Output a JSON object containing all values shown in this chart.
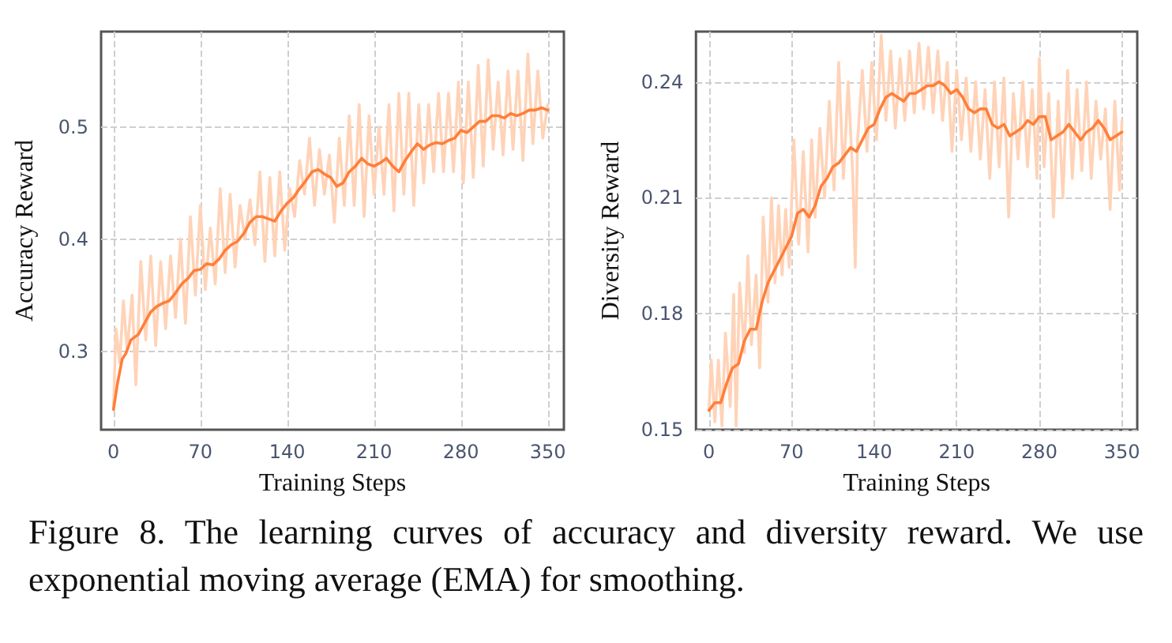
{
  "chart_data": [
    {
      "type": "line",
      "xlabel": "Training Steps",
      "ylabel": "Accuracy Reward",
      "xlim": [
        -10,
        363
      ],
      "xticks": [
        0,
        70,
        140,
        210,
        280,
        350
      ],
      "ylim": [
        0.23,
        0.585
      ],
      "yticks": [
        0.3,
        0.4,
        0.5
      ],
      "grid": true,
      "marker": "none",
      "line_style": "solid",
      "annotations": [
        "Figure 8.  The learning curves of accuracy and diversity reward. We use exponential moving average (EMA) for smoothing."
      ],
      "series": [
        {
          "color": "#ffd3b8",
          "x": [
            0,
            2,
            5,
            8,
            11,
            15,
            18,
            22,
            26,
            30,
            34,
            38,
            42,
            46,
            50,
            54,
            58,
            62,
            66,
            70,
            74,
            78,
            82,
            86,
            90,
            94,
            98,
            102,
            106,
            110,
            114,
            118,
            122,
            126,
            130,
            134,
            138,
            142,
            146,
            150,
            154,
            158,
            162,
            166,
            170,
            174,
            178,
            182,
            186,
            190,
            194,
            198,
            202,
            206,
            210,
            214,
            218,
            222,
            226,
            230,
            234,
            238,
            242,
            246,
            250,
            254,
            258,
            262,
            266,
            270,
            274,
            278,
            282,
            286,
            290,
            294,
            298,
            302,
            306,
            310,
            314,
            318,
            322,
            326,
            330,
            334,
            338,
            342,
            346,
            350
          ],
          "values": [
            0.25,
            0.32,
            0.29,
            0.345,
            0.3,
            0.35,
            0.27,
            0.38,
            0.31,
            0.385,
            0.305,
            0.38,
            0.32,
            0.385,
            0.33,
            0.4,
            0.325,
            0.42,
            0.35,
            0.43,
            0.355,
            0.41,
            0.36,
            0.445,
            0.37,
            0.44,
            0.375,
            0.43,
            0.4,
            0.435,
            0.395,
            0.46,
            0.38,
            0.455,
            0.385,
            0.46,
            0.39,
            0.445,
            0.42,
            0.47,
            0.44,
            0.49,
            0.43,
            0.48,
            0.44,
            0.475,
            0.415,
            0.49,
            0.43,
            0.51,
            0.43,
            0.52,
            0.42,
            0.51,
            0.44,
            0.5,
            0.44,
            0.52,
            0.425,
            0.53,
            0.44,
            0.53,
            0.43,
            0.52,
            0.45,
            0.52,
            0.46,
            0.53,
            0.46,
            0.53,
            0.46,
            0.54,
            0.45,
            0.54,
            0.455,
            0.555,
            0.465,
            0.56,
            0.48,
            0.54,
            0.475,
            0.55,
            0.48,
            0.55,
            0.47,
            0.565,
            0.485,
            0.55,
            0.49,
            0.52
          ]
        },
        {
          "color": "#ff7f3a",
          "x": [
            0,
            3,
            7,
            10,
            14,
            20,
            25,
            30,
            35,
            40,
            45,
            50,
            55,
            60,
            65,
            70,
            75,
            80,
            85,
            90,
            95,
            100,
            105,
            110,
            115,
            120,
            125,
            130,
            135,
            140,
            145,
            150,
            155,
            160,
            165,
            170,
            175,
            180,
            185,
            190,
            195,
            200,
            205,
            210,
            215,
            220,
            225,
            230,
            235,
            240,
            245,
            250,
            255,
            260,
            265,
            270,
            275,
            280,
            285,
            290,
            295,
            300,
            305,
            310,
            315,
            320,
            325,
            330,
            335,
            340,
            345,
            350
          ],
          "values": [
            0.248,
            0.27,
            0.293,
            0.298,
            0.31,
            0.315,
            0.325,
            0.335,
            0.34,
            0.343,
            0.345,
            0.352,
            0.36,
            0.365,
            0.372,
            0.373,
            0.378,
            0.377,
            0.382,
            0.39,
            0.395,
            0.398,
            0.405,
            0.415,
            0.42,
            0.42,
            0.418,
            0.416,
            0.425,
            0.432,
            0.437,
            0.445,
            0.452,
            0.46,
            0.462,
            0.458,
            0.455,
            0.447,
            0.45,
            0.46,
            0.465,
            0.472,
            0.467,
            0.465,
            0.468,
            0.472,
            0.465,
            0.46,
            0.47,
            0.478,
            0.485,
            0.48,
            0.484,
            0.486,
            0.485,
            0.488,
            0.49,
            0.497,
            0.495,
            0.5,
            0.505,
            0.505,
            0.51,
            0.51,
            0.508,
            0.512,
            0.51,
            0.512,
            0.515,
            0.515,
            0.517,
            0.515
          ]
        }
      ]
    },
    {
      "type": "line",
      "xlabel": "Training Steps",
      "ylabel": "Diversity Reward",
      "xlim": [
        -11,
        363
      ],
      "xticks": [
        0,
        70,
        140,
        210,
        280,
        350
      ],
      "ylim": [
        0.15,
        0.253
      ],
      "yticks": [
        0.15,
        0.18,
        0.21,
        0.24
      ],
      "grid": true,
      "marker": "none",
      "line_style": "solid",
      "series": [
        {
          "color": "#ffd3b8",
          "x": [
            0,
            2,
            5,
            8,
            11,
            14,
            18,
            21,
            23,
            26,
            30,
            33,
            36,
            40,
            43,
            46,
            50,
            53,
            56,
            59,
            62,
            65,
            68,
            72,
            76,
            80,
            84,
            87,
            90,
            94,
            98,
            102,
            106,
            110,
            114,
            118,
            122,
            124,
            126,
            130,
            134,
            138,
            142,
            146,
            150,
            154,
            158,
            162,
            166,
            170,
            174,
            178,
            182,
            186,
            190,
            194,
            198,
            202,
            206,
            210,
            214,
            218,
            222,
            226,
            230,
            234,
            238,
            242,
            246,
            250,
            254,
            258,
            262,
            266,
            270,
            274,
            278,
            280,
            284,
            288,
            292,
            296,
            300,
            304,
            308,
            312,
            316,
            320,
            324,
            328,
            332,
            336,
            340,
            344,
            348,
            350
          ],
          "values": [
            0.155,
            0.168,
            0.152,
            0.168,
            0.151,
            0.175,
            0.156,
            0.185,
            0.151,
            0.188,
            0.17,
            0.195,
            0.172,
            0.19,
            0.166,
            0.205,
            0.183,
            0.21,
            0.188,
            0.208,
            0.19,
            0.207,
            0.192,
            0.225,
            0.198,
            0.222,
            0.196,
            0.225,
            0.205,
            0.228,
            0.21,
            0.235,
            0.212,
            0.245,
            0.215,
            0.24,
            0.215,
            0.192,
            0.225,
            0.243,
            0.222,
            0.245,
            0.225,
            0.252,
            0.23,
            0.248,
            0.228,
            0.246,
            0.23,
            0.248,
            0.232,
            0.25,
            0.233,
            0.249,
            0.232,
            0.248,
            0.23,
            0.245,
            0.222,
            0.243,
            0.225,
            0.241,
            0.222,
            0.24,
            0.22,
            0.238,
            0.215,
            0.24,
            0.218,
            0.241,
            0.205,
            0.237,
            0.22,
            0.24,
            0.218,
            0.238,
            0.215,
            0.246,
            0.218,
            0.237,
            0.205,
            0.235,
            0.21,
            0.243,
            0.215,
            0.238,
            0.217,
            0.24,
            0.215,
            0.235,
            0.22,
            0.233,
            0.207,
            0.235,
            0.212,
            0.23
          ]
        },
        {
          "color": "#ff7f3a",
          "x": [
            0,
            5,
            10,
            15,
            20,
            25,
            30,
            35,
            40,
            45,
            50,
            55,
            60,
            65,
            70,
            75,
            80,
            85,
            90,
            95,
            100,
            105,
            110,
            115,
            120,
            125,
            130,
            135,
            140,
            145,
            150,
            155,
            160,
            165,
            170,
            175,
            180,
            185,
            190,
            195,
            200,
            205,
            210,
            215,
            220,
            225,
            230,
            235,
            240,
            245,
            250,
            255,
            260,
            265,
            270,
            275,
            280,
            285,
            290,
            295,
            300,
            305,
            310,
            315,
            320,
            325,
            330,
            335,
            340,
            345,
            350
          ],
          "values": [
            0.155,
            0.157,
            0.157,
            0.162,
            0.166,
            0.167,
            0.173,
            0.176,
            0.176,
            0.183,
            0.188,
            0.191,
            0.194,
            0.197,
            0.2,
            0.206,
            0.207,
            0.205,
            0.208,
            0.213,
            0.215,
            0.218,
            0.219,
            0.221,
            0.223,
            0.222,
            0.225,
            0.228,
            0.229,
            0.233,
            0.236,
            0.237,
            0.236,
            0.235,
            0.237,
            0.237,
            0.238,
            0.239,
            0.239,
            0.24,
            0.239,
            0.237,
            0.238,
            0.236,
            0.233,
            0.232,
            0.233,
            0.233,
            0.229,
            0.228,
            0.229,
            0.226,
            0.227,
            0.228,
            0.23,
            0.229,
            0.231,
            0.231,
            0.225,
            0.226,
            0.227,
            0.229,
            0.227,
            0.225,
            0.227,
            0.228,
            0.23,
            0.228,
            0.225,
            0.226,
            0.227
          ]
        }
      ]
    }
  ]
}
